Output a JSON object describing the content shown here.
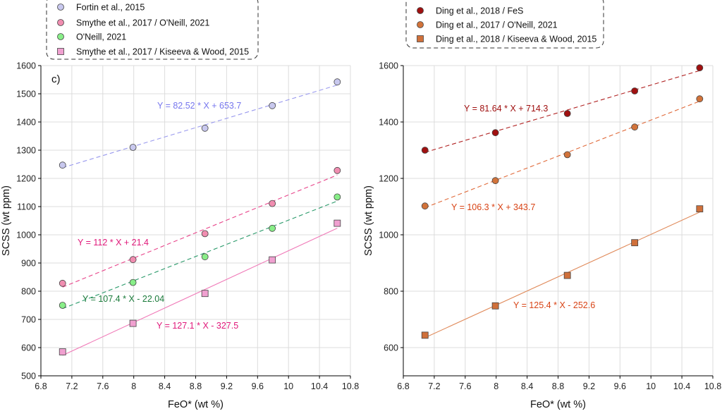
{
  "chart_data": [
    {
      "type": "scatter",
      "panel_label": "c)",
      "xlabel": "FeO* (wt %)",
      "ylabel": "SCSS (wt ppm)",
      "xlim": [
        6.8,
        10.8
      ],
      "ylim": [
        500,
        1600
      ],
      "xticks": [
        "6.8",
        "7.2",
        "7.6",
        "8",
        "8.4",
        "8.8",
        "9.2",
        "9.6",
        "10",
        "10.4",
        "10.8"
      ],
      "yticks": [
        "500",
        "600",
        "700",
        "800",
        "900",
        "1000",
        "1100",
        "1200",
        "1300",
        "1400",
        "1500",
        "1600"
      ],
      "grid": true,
      "legend_position": "top",
      "series": [
        {
          "name": "Fortin et al., 2015",
          "marker": "circle",
          "color": "#c8c8ee",
          "line_color": "#9999ee",
          "line_style": "dashed",
          "x": [
            7.08,
            7.99,
            8.92,
            9.79,
            10.63
          ],
          "y": [
            1247,
            1310,
            1378,
            1458,
            1542
          ],
          "fit": {
            "slope": 82.52,
            "intercept": 653.7,
            "label": "Y = 82.52 * X + 653.7",
            "label_color": "#7777ee"
          }
        },
        {
          "name": "Smythe et al., 2017 / O'Neill, 2021",
          "marker": "circle",
          "color": "#f08db0",
          "line_color": "#e8448a",
          "line_style": "dashed",
          "x": [
            7.08,
            7.99,
            8.92,
            9.79,
            10.63
          ],
          "y": [
            828,
            912,
            1004,
            1111,
            1228
          ],
          "fit": {
            "slope": 112,
            "intercept": 21.4,
            "label": "Y = 112 * X + 21.4",
            "label_color": "#e0187a"
          }
        },
        {
          "name": "O'Neill, 2021",
          "marker": "circle",
          "color": "#88ee88",
          "line_color": "#2a9a6a",
          "line_style": "dashed",
          "x": [
            7.08,
            7.99,
            8.92,
            9.79,
            10.63
          ],
          "y": [
            750,
            831,
            922,
            1023,
            1134
          ],
          "fit": {
            "slope": 107.4,
            "intercept": -22.04,
            "label": "Y = 107.4 * X - 22.04",
            "label_color": "#1a7a3a"
          }
        },
        {
          "name": "Smythe et al., 2017 / Kiseeva & Wood, 2015",
          "marker": "square",
          "color": "#f0a0d0",
          "line_color": "#f07ab8",
          "line_style": "solid",
          "x": [
            7.08,
            7.99,
            8.92,
            9.79,
            10.63
          ],
          "y": [
            585,
            686,
            792,
            911,
            1041
          ],
          "fit": {
            "slope": 127.1,
            "intercept": -327.5,
            "label": "Y = 127.1 * X - 327.5",
            "label_color": "#e0187a"
          }
        }
      ]
    },
    {
      "type": "scatter",
      "xlabel": "FeO* (wt %)",
      "ylabel": "SCSS (wt ppm)",
      "xlim": [
        6.8,
        10.8
      ],
      "ylim": [
        500,
        1600
      ],
      "xticks": [
        "6.8",
        "7.2",
        "7.6",
        "8",
        "8.4",
        "8.8",
        "9.2",
        "9.6",
        "10",
        "10.4",
        "10.8"
      ],
      "yticks": [
        "600",
        "800",
        "1000",
        "1200",
        "1400",
        "1600"
      ],
      "grid": true,
      "legend_position": "top",
      "series": [
        {
          "name": "Ding et al., 2018 / FeS",
          "marker": "circle",
          "color": "#a01010",
          "line_color": "#b02020",
          "line_style": "dashed",
          "x": [
            7.08,
            7.99,
            8.92,
            9.79,
            10.63
          ],
          "y": [
            1300,
            1362,
            1430,
            1510,
            1592
          ],
          "fit": {
            "slope": 81.64,
            "intercept": 714.3,
            "label": "Y = 81.64 * X + 714.3",
            "label_color": "#a01010"
          }
        },
        {
          "name": "Ding et al., 2017 / O'Neill, 2021",
          "marker": "circle",
          "color": "#d2733a",
          "line_color": "#e06a3a",
          "line_style": "dashed",
          "x": [
            7.08,
            7.99,
            8.92,
            9.79,
            10.63
          ],
          "y": [
            1102,
            1192,
            1284,
            1382,
            1482
          ],
          "fit": {
            "slope": 106.3,
            "intercept": 343.7,
            "label": "Y = 106.3 * X + 343.7",
            "label_color": "#d84315"
          }
        },
        {
          "name": "Ding et al., 2018 / Kiseeva & Wood, 2015",
          "marker": "square",
          "color": "#d0703a",
          "line_color": "#e08a5a",
          "line_style": "solid",
          "x": [
            7.08,
            7.99,
            8.92,
            9.79,
            10.63
          ],
          "y": [
            644,
            748,
            856,
            972,
            1092
          ],
          "fit": {
            "slope": 125.4,
            "intercept": -252.6,
            "label": "Y = 125.4 * X - 252.6",
            "label_color": "#d84315"
          }
        }
      ]
    }
  ]
}
